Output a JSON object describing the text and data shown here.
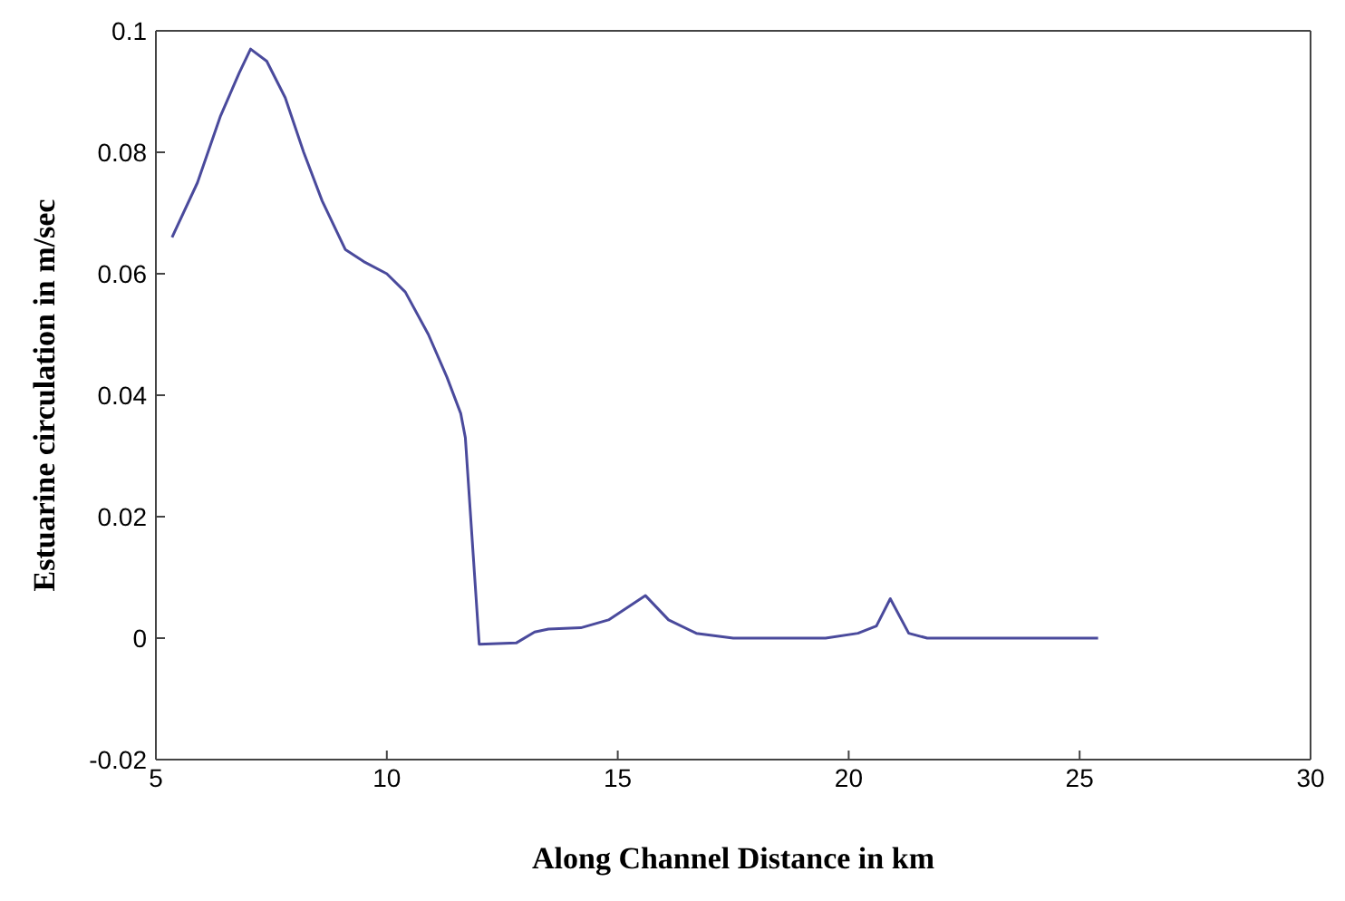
{
  "chart_data": {
    "type": "line",
    "xlabel": "Along Channel Distance in km",
    "ylabel": "Estuarine circulation in m/sec",
    "x": [
      5.35,
      5.9,
      6.4,
      6.8,
      7.05,
      7.4,
      7.8,
      8.2,
      8.6,
      9.1,
      9.5,
      10.0,
      10.4,
      10.9,
      11.3,
      11.6,
      11.7,
      12.0,
      12.8,
      13.2,
      13.5,
      14.2,
      14.8,
      15.2,
      15.6,
      16.1,
      16.7,
      17.5,
      19.5,
      20.2,
      20.6,
      20.9,
      21.3,
      21.7,
      25.4
    ],
    "series": [
      {
        "color": "#4a4a9c",
        "values": [
          0.066,
          0.075,
          0.086,
          0.093,
          0.097,
          0.095,
          0.089,
          0.08,
          0.072,
          0.064,
          0.062,
          0.06,
          0.057,
          0.05,
          0.043,
          0.037,
          0.033,
          -0.001,
          -0.0008,
          0.001,
          0.0015,
          0.0017,
          0.003,
          0.005,
          0.007,
          0.003,
          0.0008,
          0,
          0,
          0.0008,
          0.002,
          0.0065,
          0.0008,
          0,
          0
        ]
      }
    ],
    "xlim": [
      5,
      30
    ],
    "xticks": [
      5,
      10,
      15,
      20,
      25,
      30
    ],
    "ylim": [
      -0.02,
      0.1
    ],
    "yticks": [
      -0.02,
      0,
      0.02,
      0.04,
      0.06,
      0.08,
      0.1
    ]
  }
}
